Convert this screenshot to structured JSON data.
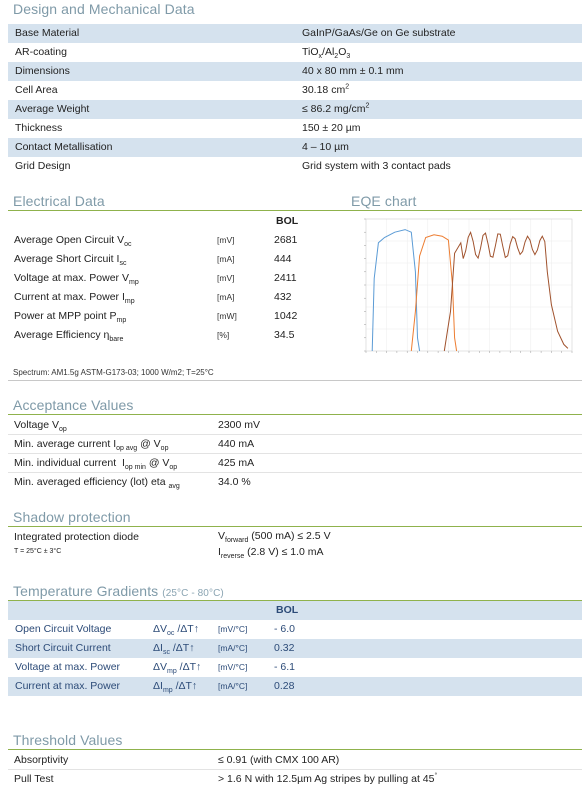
{
  "design": {
    "title": "Design and Mechanical Data",
    "rows": [
      {
        "label": "Base Material",
        "value": "GaInP/GaAs/Ge on Ge substrate"
      },
      {
        "label": "AR-coating",
        "value_html": "TiO<sub>x</sub>/Al<sub>2</sub>O<sub>3</sub>"
      },
      {
        "label": "Dimensions",
        "value": "40 x 80 mm ± 0.1 mm"
      },
      {
        "label": "Cell Area",
        "value_html": "30.18 cm<sup>2</sup>"
      },
      {
        "label": "Average Weight",
        "value_html": "≤ 86.2 mg/cm<sup>2</sup>"
      },
      {
        "label": "Thickness",
        "value": "150 ± 20 µm"
      },
      {
        "label": "Contact Metallisation",
        "value": "4 – 10 µm"
      },
      {
        "label": "Grid Design",
        "value": "Grid system with 3 contact pads"
      }
    ]
  },
  "electrical": {
    "title": "Electrical Data",
    "col_header": "BOL",
    "rows": [
      {
        "label_html": "Average Open Circuit V<sub>oc</sub>",
        "unit": "[mV]",
        "value": "2681"
      },
      {
        "label_html": "Average Short Circuit I<sub>sc</sub>",
        "unit": "[mA]",
        "value": "444"
      },
      {
        "label_html": "Voltage at max. Power V<sub>mp</sub>",
        "unit": "[mV]",
        "value": "2411"
      },
      {
        "label_html": "Current at max. Power I<sub>mp</sub>",
        "unit": "[mA]",
        "value": "432"
      },
      {
        "label_html": "Power at MPP point P<sub>mp</sub>",
        "unit": "[mW]",
        "value": "1042"
      },
      {
        "label_html": "Average Efficiency η<sub>bare</sub>",
        "unit": "[%]",
        "value": "34.5"
      }
    ],
    "footnote": "Spectrum: AM1.5g ASTM-G173-03; 1000 W/m2; T=25°C"
  },
  "eqe": {
    "title": "EQE chart"
  },
  "acceptance": {
    "title": "Acceptance Values",
    "rows": [
      {
        "label_html": "Voltage V<sub>op</sub>",
        "value": "2300 mV"
      },
      {
        "label_html": "Min. average current I<sub>op avg</sub> @ V<sub>op</sub>",
        "value": "440 mA"
      },
      {
        "label_html": "Min. individual current &nbsp;I<sub>op min</sub> @ V<sub>op</sub>",
        "value": "425 mA"
      },
      {
        "label_html": "Min. averaged efficiency (lot) eta <sub>avg</sub>",
        "value": "34.0 %"
      }
    ]
  },
  "shadow": {
    "title": "Shadow  protection",
    "label": "Integrated protection diode",
    "sublabel": "T = 25°C ± 3°C",
    "value1_html": "V<sub>forward</sub> (500 mA) ≤ 2.5 V",
    "value2_html": "I<sub>reverse</sub> (2.8 V) ≤ 1.0 mA"
  },
  "temperature": {
    "title": "Temperature Gradients",
    "title_sub": "(25°C - 80°C)",
    "col_header": "BOL",
    "rows": [
      {
        "label": "Open Circuit Voltage",
        "symbol_html": "ΔV<sub>oc</sub> /ΔT↑",
        "unit": "[mV/°C]",
        "value": "- 6.0"
      },
      {
        "label": "Short Circuit Current",
        "symbol_html": "ΔI<sub>sc</sub> /ΔT↑",
        "unit": "[mA/°C]",
        "value": "0.32"
      },
      {
        "label": "Voltage at max. Power",
        "symbol_html": "ΔV<sub>mp</sub> /ΔT↑",
        "unit": "[mV/°C]",
        "value": "- 6.1"
      },
      {
        "label": "Current at max. Power",
        "symbol_html": "ΔI<sub>mp</sub> /ΔT↑",
        "unit": "[mA/°C]",
        "value": "0.28"
      }
    ]
  },
  "threshold": {
    "title": "Threshold Values",
    "rows": [
      {
        "label": "Absorptivity",
        "value_html": "≤ 0.91 (with CMX 100 AR)"
      },
      {
        "label": "Pull Test",
        "value_html": "&gt; 1.6 N with 12.5µm Ag stripes by pulling at 45<sup>°</sup>"
      }
    ]
  },
  "colors": {
    "row_shade": "#d5e2ee",
    "title": "#7f9aa8",
    "rule": "#8fb24c",
    "eqe_top": "#5b9bd5",
    "eqe_middle": "#ed7d31",
    "eqe_bottom": "#a0522d"
  }
}
